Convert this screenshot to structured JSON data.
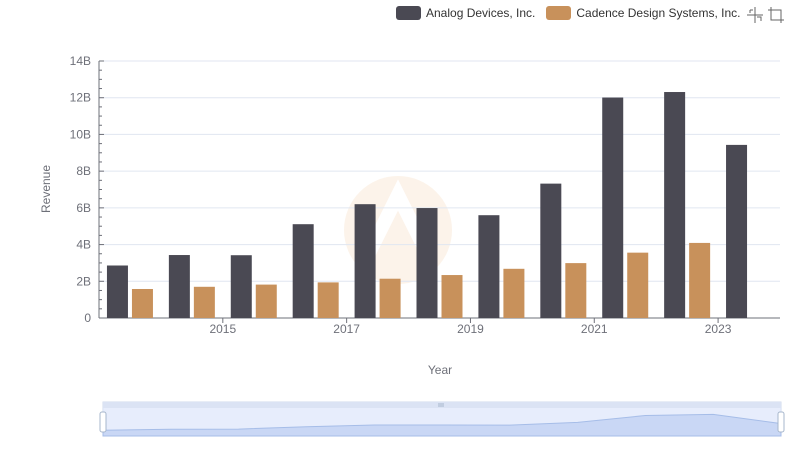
{
  "legend": {
    "items": [
      {
        "label": "Analog Devices, Inc.",
        "color": "#4a4953"
      },
      {
        "label": "Cadence Design Systems, Inc.",
        "color": "#c8915b"
      }
    ]
  },
  "toolbox": {
    "icons": [
      "zoom-icon",
      "zoom-reset-icon"
    ]
  },
  "chart_data": {
    "type": "bar",
    "categories": [
      "2014",
      "2015",
      "2016",
      "2017",
      "2018",
      "2019",
      "2020",
      "2021",
      "2022",
      "2023",
      "2024"
    ],
    "visible_tick_labels": [
      "2015",
      "2017",
      "2019",
      "2021",
      "2023"
    ],
    "series": [
      {
        "name": "Analog Devices, Inc.",
        "color": "#4a4953",
        "values": [
          2.86,
          3.43,
          3.42,
          5.11,
          6.2,
          5.99,
          5.6,
          7.32,
          12.01,
          12.31,
          9.43
        ]
      },
      {
        "name": "Cadence Design Systems, Inc.",
        "color": "#c8915b",
        "values": [
          1.58,
          1.7,
          1.82,
          1.94,
          2.14,
          2.34,
          2.68,
          2.99,
          3.56,
          4.09,
          null
        ]
      }
    ],
    "xlabel": "Year",
    "ylabel": "Revenue",
    "ylim": [
      0,
      14
    ],
    "yticks": [
      {
        "value": 0,
        "label": "0"
      },
      {
        "value": 2,
        "label": "2B"
      },
      {
        "value": 4,
        "label": "4B"
      },
      {
        "value": 6,
        "label": "6B"
      },
      {
        "value": 8,
        "label": "8B"
      },
      {
        "value": 10,
        "label": "10B"
      },
      {
        "value": 12,
        "label": "12B"
      },
      {
        "value": 14,
        "label": "14B"
      }
    ],
    "grid": true,
    "legend_position": "top-right",
    "data_zoom": {
      "start_percent": 0,
      "end_percent": 100
    }
  }
}
